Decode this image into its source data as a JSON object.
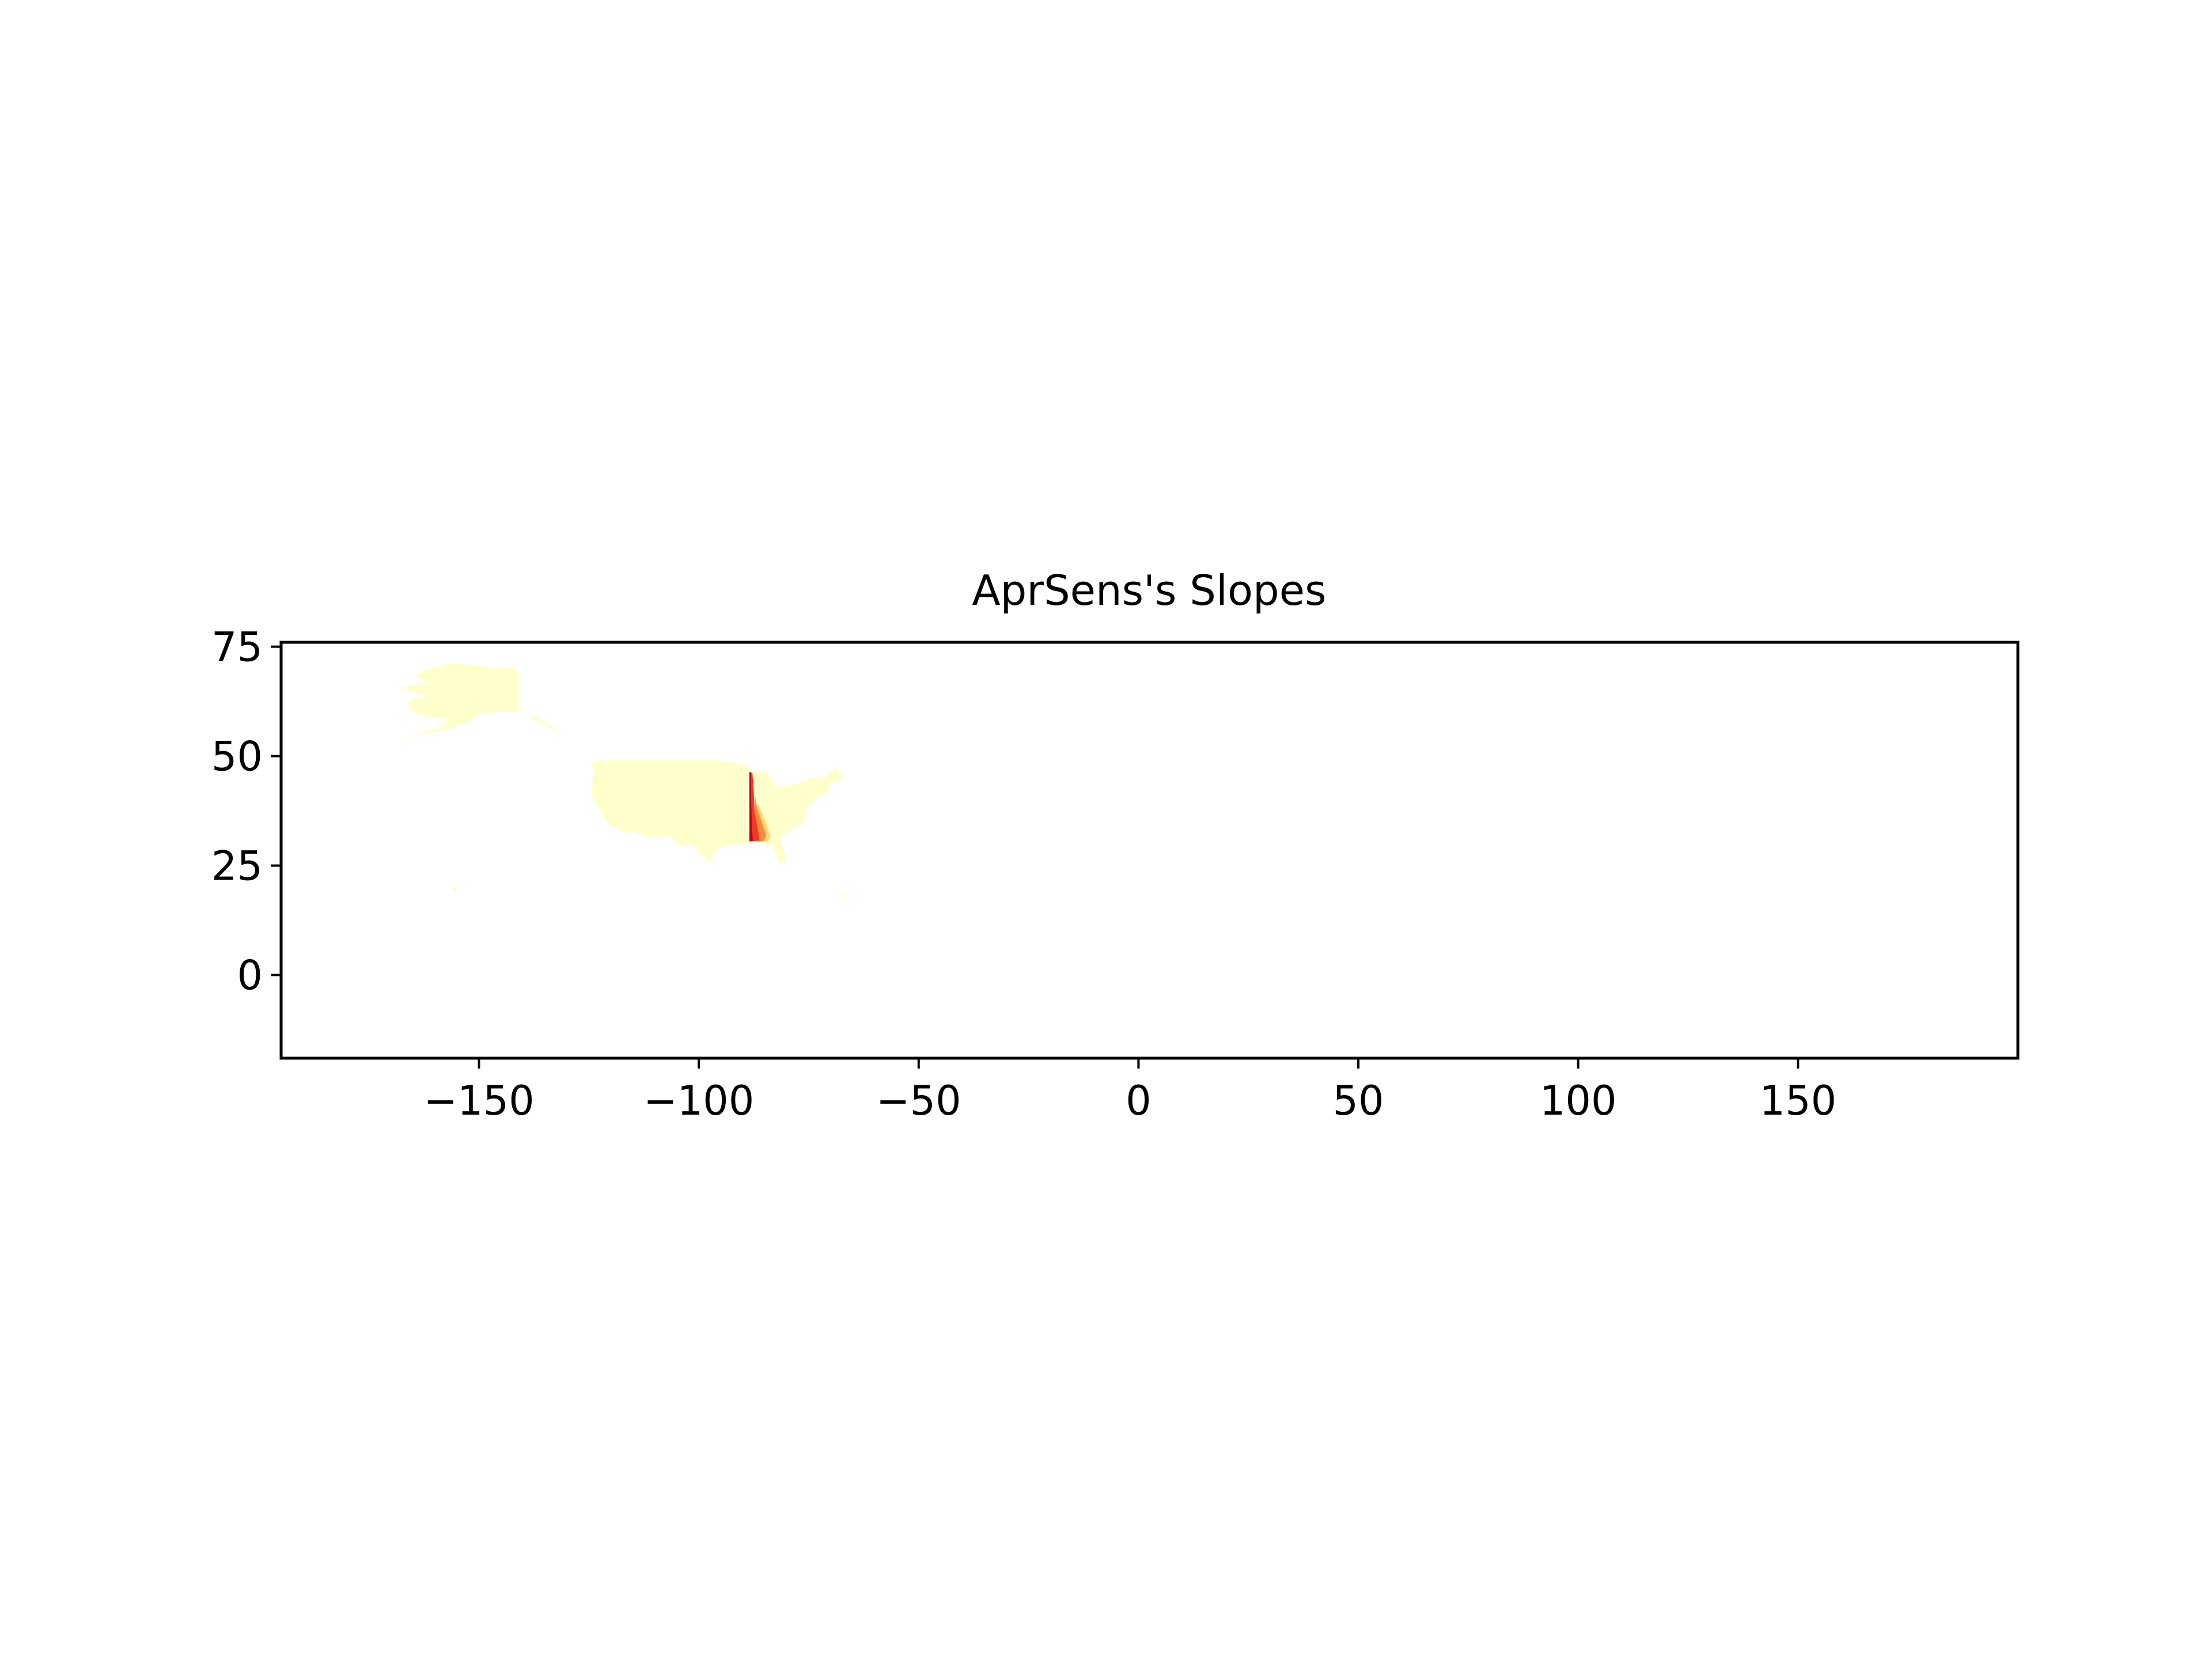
{
  "title": "AprSens's Slopes",
  "colors": {
    "land": "#ffffcc",
    "low": "#fed976",
    "mid": "#fd8d3c",
    "high": "#f03b20",
    "max": "#bd0026",
    "axis": "#000000",
    "background": "#ffffff"
  },
  "chart_data": {
    "type": "heatmap",
    "title": "AprSens's Slopes",
    "xlabel": "",
    "ylabel": "",
    "xlim": [
      -195,
      200
    ],
    "ylim": [
      -19,
      76
    ],
    "xticks": [
      -150,
      -100,
      -50,
      0,
      50,
      100,
      150
    ],
    "yticks": [
      0,
      25,
      50,
      75
    ],
    "xtick_labels": [
      "−150",
      "−100",
      "−50",
      "0",
      "50",
      "100",
      "150"
    ],
    "ytick_labels": [
      "0",
      "25",
      "50",
      "75"
    ],
    "grid": false,
    "legend": "none",
    "colormap": "YlOrRd",
    "regions": [
      {
        "name": "alaska",
        "color": "land",
        "polygon": [
          [
            -141,
            70
          ],
          [
            -141,
            60
          ],
          [
            -137,
            59
          ],
          [
            -133,
            56.5
          ],
          [
            -131,
            55
          ],
          [
            -136,
            57.5
          ],
          [
            -140,
            59.8
          ],
          [
            -145,
            60.3
          ],
          [
            -150,
            59.5
          ],
          [
            -152,
            58
          ],
          [
            -156,
            56.5
          ],
          [
            -160,
            55.5
          ],
          [
            -165,
            54.5
          ],
          [
            -168,
            53.8
          ],
          [
            -162,
            55.5
          ],
          [
            -158,
            57
          ],
          [
            -157.5,
            58.5
          ],
          [
            -162,
            59
          ],
          [
            -165,
            60.2
          ],
          [
            -166.5,
            61.5
          ],
          [
            -165.5,
            63
          ],
          [
            -161,
            64
          ],
          [
            -165,
            64.6
          ],
          [
            -168,
            65.6
          ],
          [
            -166,
            66.2
          ],
          [
            -162,
            66.5
          ],
          [
            -164.5,
            68.5
          ],
          [
            -163,
            69.5
          ],
          [
            -156,
            71.3
          ],
          [
            -150,
            70.5
          ],
          [
            -145,
            70.2
          ]
        ]
      },
      {
        "name": "contiguous-us-west",
        "color": "land",
        "polygon": [
          [
            -123,
            49
          ],
          [
            -95,
            49
          ],
          [
            -90,
            48.2
          ],
          [
            -88.5,
            47.5
          ],
          [
            -88,
            30.3
          ],
          [
            -89.6,
            29.8
          ],
          [
            -93,
            29.7
          ],
          [
            -95.5,
            28.9
          ],
          [
            -97.3,
            27.5
          ],
          [
            -97.2,
            25.9
          ],
          [
            -99,
            26.8
          ],
          [
            -101.5,
            29.8
          ],
          [
            -104.5,
            29.5
          ],
          [
            -106.5,
            31.8
          ],
          [
            -111,
            31.3
          ],
          [
            -114.7,
            32.7
          ],
          [
            -117.1,
            32.5
          ],
          [
            -120.5,
            34.4
          ],
          [
            -122.5,
            37.5
          ],
          [
            -124.2,
            40.5
          ],
          [
            -124.3,
            43.5
          ],
          [
            -123.9,
            46.5
          ],
          [
            -124.6,
            48.4
          ]
        ]
      },
      {
        "name": "contiguous-us-east",
        "color": "land",
        "polygon": [
          [
            -88,
            46.5
          ],
          [
            -84.5,
            46.5
          ],
          [
            -82.5,
            43
          ],
          [
            -79,
            43.3
          ],
          [
            -76.5,
            44.3
          ],
          [
            -74.5,
            45
          ],
          [
            -71.5,
            45
          ],
          [
            -69.2,
            47.4
          ],
          [
            -67,
            45
          ],
          [
            -70.2,
            43.6
          ],
          [
            -70.5,
            41.7
          ],
          [
            -72.5,
            41
          ],
          [
            -74.2,
            39.5
          ],
          [
            -75.5,
            38
          ],
          [
            -76,
            35
          ],
          [
            -78,
            33.9
          ],
          [
            -81,
            31.8
          ],
          [
            -81.3,
            30
          ],
          [
            -80,
            26.8
          ],
          [
            -80.5,
            25.2
          ],
          [
            -81.8,
            25.8
          ],
          [
            -82.7,
            27.9
          ],
          [
            -83.4,
            29.6
          ],
          [
            -84.8,
            29.7
          ],
          [
            -86.3,
            30.4
          ],
          [
            -88,
            30.3
          ]
        ]
      },
      {
        "name": "slope-band-low",
        "color": "low",
        "polygon": [
          [
            -86.5,
            39
          ],
          [
            -84.8,
            35
          ],
          [
            -83.7,
            31.8
          ],
          [
            -84.2,
            30.4
          ],
          [
            -85.6,
            30.8
          ],
          [
            -86.3,
            33
          ],
          [
            -86.8,
            36
          ]
        ]
      },
      {
        "name": "slope-band-mid",
        "color": "mid",
        "polygon": [
          [
            -87.2,
            41
          ],
          [
            -86.7,
            38
          ],
          [
            -85.6,
            34.8
          ],
          [
            -84.7,
            32
          ],
          [
            -85.2,
            30.6
          ],
          [
            -86.4,
            30.5
          ],
          [
            -87.3,
            31
          ]
        ]
      },
      {
        "name": "slope-band-high",
        "color": "high",
        "polygon": [
          [
            -88.4,
            46.2
          ],
          [
            -87.8,
            46.1
          ],
          [
            -87.5,
            42
          ],
          [
            -87.3,
            37
          ],
          [
            -86.6,
            33.5
          ],
          [
            -86.2,
            30.7
          ],
          [
            -88.4,
            30.5
          ]
        ]
      },
      {
        "name": "slope-band-max",
        "color": "max",
        "polygon": [
          [
            -88.5,
            46.4
          ],
          [
            -88.1,
            46.3
          ],
          [
            -88.1,
            40
          ],
          [
            -87.9,
            33
          ],
          [
            -87.7,
            30.6
          ],
          [
            -88.5,
            30.5
          ]
        ]
      },
      {
        "name": "hawaii",
        "color": "land",
        "polygon": [
          [
            -156.1,
            20.3
          ],
          [
            -154.9,
            19.5
          ],
          [
            -155.6,
            18.9
          ],
          [
            -156,
            19.6
          ]
        ]
      },
      {
        "name": "puerto-rico",
        "color": "land",
        "polygon": [
          [
            -67.3,
            18.5
          ],
          [
            -65.6,
            18.4
          ],
          [
            -65.7,
            17.9
          ],
          [
            -67.2,
            17.9
          ]
        ]
      }
    ]
  }
}
